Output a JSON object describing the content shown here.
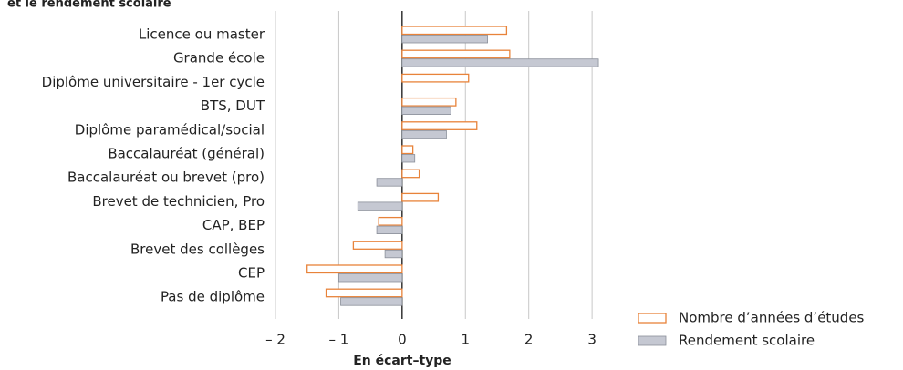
{
  "chart_data": {
    "type": "hbar",
    "title": "et le rendement scolaire",
    "x_label": "En écart–type",
    "categories": [
      "Licence ou master",
      "Grande école",
      "Diplôme universitaire - 1er cycle",
      "BTS, DUT",
      "Diplôme paramédical/social",
      "Baccalauréat (général)",
      "Baccalauréat ou brevet (pro)",
      "Brevet de technicien, Pro",
      "CAP, BEP",
      "Brevet des collèges",
      "CEP",
      "Pas de diplôme"
    ],
    "series": [
      {
        "name": "Nombre d’années d’études",
        "color": "#e8833a",
        "values": [
          1.65,
          1.7,
          1.05,
          0.85,
          1.18,
          0.17,
          0.27,
          0.57,
          -0.37,
          -0.77,
          -1.5,
          -1.2
        ]
      },
      {
        "name": "Rendement scolaire",
        "color": "#c5c8d2",
        "values": [
          1.35,
          3.1,
          null,
          0.77,
          0.7,
          0.2,
          -0.4,
          -0.7,
          -0.4,
          -0.27,
          -1.0,
          -0.97
        ]
      }
    ],
    "xlim": [
      -2,
      3.2
    ],
    "xticks": [
      {
        "value": -2,
        "label": "– 2"
      },
      {
        "value": -1,
        "label": "– 1"
      },
      0,
      1,
      2,
      3
    ],
    "grid": true
  }
}
